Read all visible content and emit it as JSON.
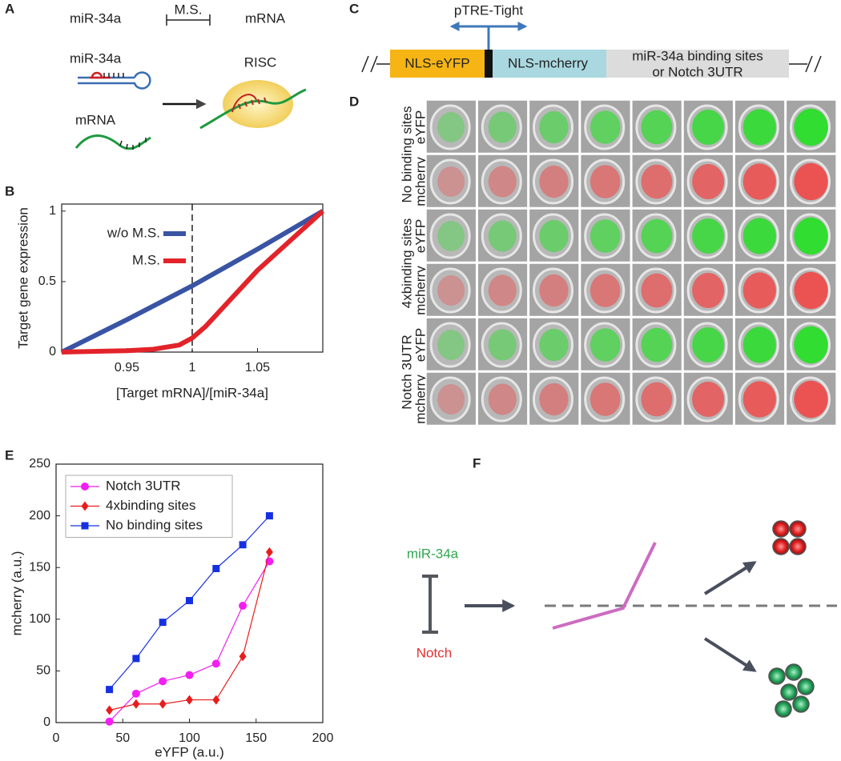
{
  "panel_labels": [
    "A",
    "B",
    "C",
    "D",
    "E",
    "F"
  ],
  "panel_a": {
    "mirna": "miR-34a",
    "ms": "M.S.",
    "mrna": "mRNA",
    "mirna_2": "miR-34a",
    "risc": "RISC",
    "mrna_2": "mRNA"
  },
  "panel_c": {
    "promoter": "pTRE-Tight",
    "segments": [
      "NLS-eYFP",
      "NLS-mcherry"
    ],
    "utr": [
      "miR-34a binding sites",
      "or Notch 3UTR"
    ]
  },
  "panel_d": {
    "group_labels": [
      "No binding sites",
      "4xbinding sites",
      "Notch 3UTR"
    ],
    "row_labels": [
      "eYFP",
      "mcherry",
      "eYFP",
      "mcherry",
      "eYFP",
      "mcherry"
    ]
  },
  "panel_f": {
    "regulator": "miR-34a",
    "target": "Notch"
  },
  "chart_data": [
    {
      "type": "line",
      "x_label": "[Target mRNA]/[miR-34a]",
      "y_label": "Target gene expression",
      "xlim": [
        0.9,
        1.1
      ],
      "ylim": [
        0,
        1.05
      ],
      "xticks": [
        0.95,
        1,
        1.05
      ],
      "yticks": [
        0,
        0.5,
        1
      ],
      "vline": 1,
      "legend": "upper left",
      "series": [
        {
          "name": "w/o M.S.",
          "color": "#3a54a4",
          "x": [
            0.9,
            0.95,
            1.0,
            1.05,
            1.1
          ],
          "values": [
            0,
            0.23,
            0.47,
            0.73,
            1
          ]
        },
        {
          "name": "M.S.",
          "color": "#e2232a",
          "x": [
            0.9,
            0.95,
            0.97,
            0.99,
            1.0,
            1.01,
            1.05,
            1.1
          ],
          "values": [
            0,
            0.01,
            0.02,
            0.05,
            0.1,
            0.18,
            0.58,
            1
          ]
        }
      ]
    },
    {
      "type": "line",
      "x_label": "eYFP (a.u.)",
      "y_label": "mcherry (a.u.)",
      "xlim": [
        0,
        200
      ],
      "ylim": [
        0,
        250
      ],
      "xticks": [
        0,
        50,
        100,
        150,
        200
      ],
      "yticks": [
        0,
        50,
        100,
        150,
        200,
        250
      ],
      "legend": "upper left",
      "x": [
        40,
        60,
        80,
        100,
        120,
        140,
        160
      ],
      "series": [
        {
          "name": "Notch 3UTR",
          "color": "#f21ef2",
          "marker": "circle",
          "values": [
            1,
            28,
            40,
            46,
            57,
            113,
            156
          ]
        },
        {
          "name": "4xbinding sites",
          "color": "#e81c1c",
          "marker": "diamond",
          "values": [
            12,
            18,
            18,
            22,
            22,
            64,
            165
          ]
        },
        {
          "name": "No binding sites",
          "color": "#1530e0",
          "marker": "square",
          "values": [
            32,
            62,
            97,
            118,
            149,
            172,
            200
          ]
        }
      ]
    }
  ]
}
